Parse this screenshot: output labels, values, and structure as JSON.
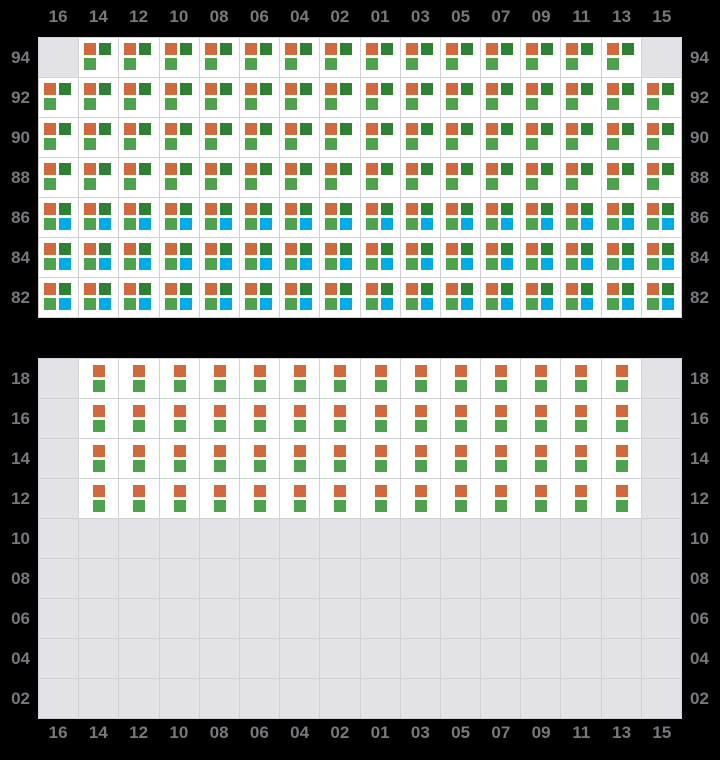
{
  "colors": {
    "background": "#000000",
    "cell_white": "#ffffff",
    "cell_empty": "#e3e3e7",
    "grid_line": "#d2d2d6",
    "label_gray": "#77777e",
    "orange": "#d2693c",
    "dark_green": "#2e8033",
    "light_green": "#4ea24e",
    "blue": "#00ace8"
  },
  "column_labels": [
    "16",
    "14",
    "12",
    "10",
    "08",
    "06",
    "04",
    "02",
    "01",
    "03",
    "05",
    "07",
    "09",
    "11",
    "13",
    "15"
  ],
  "cell_types": {
    "E": {
      "description": "empty-gray-cell",
      "squares": []
    },
    "T3": {
      "description": "three-seat-cell",
      "squares": [
        {
          "color": "orange",
          "slot": "tl"
        },
        {
          "color": "dark_green",
          "slot": "tr"
        },
        {
          "color": "light_green",
          "slot": "bl"
        }
      ]
    },
    "T4": {
      "description": "four-seat-cell",
      "squares": [
        {
          "color": "orange",
          "slot": "tl"
        },
        {
          "color": "dark_green",
          "slot": "tr"
        },
        {
          "color": "light_green",
          "slot": "bl"
        },
        {
          "color": "blue",
          "slot": "br"
        }
      ]
    },
    "V2": {
      "description": "two-seat-stacked-cell",
      "squares": [
        {
          "color": "orange",
          "slot": "ct"
        },
        {
          "color": "light_green",
          "slot": "cb"
        }
      ]
    }
  },
  "grids": [
    {
      "id": "upper",
      "rows": [
        {
          "label": "94",
          "cells": [
            "E",
            "T3",
            "T3",
            "T3",
            "T3",
            "T3",
            "T3",
            "T3",
            "T3",
            "T3",
            "T3",
            "T3",
            "T3",
            "T3",
            "T3",
            "E"
          ]
        },
        {
          "label": "92",
          "cells": [
            "T3",
            "T3",
            "T3",
            "T3",
            "T3",
            "T3",
            "T3",
            "T3",
            "T3",
            "T3",
            "T3",
            "T3",
            "T3",
            "T3",
            "T3",
            "T3"
          ]
        },
        {
          "label": "90",
          "cells": [
            "T3",
            "T3",
            "T3",
            "T3",
            "T3",
            "T3",
            "T3",
            "T3",
            "T3",
            "T3",
            "T3",
            "T3",
            "T3",
            "T3",
            "T3",
            "T3"
          ]
        },
        {
          "label": "88",
          "cells": [
            "T3",
            "T3",
            "T3",
            "T3",
            "T3",
            "T3",
            "T3",
            "T3",
            "T3",
            "T3",
            "T3",
            "T3",
            "T3",
            "T3",
            "T3",
            "T3"
          ]
        },
        {
          "label": "86",
          "cells": [
            "T4",
            "T4",
            "T4",
            "T4",
            "T4",
            "T4",
            "T4",
            "T4",
            "T4",
            "T4",
            "T4",
            "T4",
            "T4",
            "T4",
            "T4",
            "T4"
          ]
        },
        {
          "label": "84",
          "cells": [
            "T4",
            "T4",
            "T4",
            "T4",
            "T4",
            "T4",
            "T4",
            "T4",
            "T4",
            "T4",
            "T4",
            "T4",
            "T4",
            "T4",
            "T4",
            "T4"
          ]
        },
        {
          "label": "82",
          "cells": [
            "T4",
            "T4",
            "T4",
            "T4",
            "T4",
            "T4",
            "T4",
            "T4",
            "T4",
            "T4",
            "T4",
            "T4",
            "T4",
            "T4",
            "T4",
            "T4"
          ]
        }
      ]
    },
    {
      "id": "lower",
      "rows": [
        {
          "label": "18",
          "cells": [
            "E",
            "V2",
            "V2",
            "V2",
            "V2",
            "V2",
            "V2",
            "V2",
            "V2",
            "V2",
            "V2",
            "V2",
            "V2",
            "V2",
            "V2",
            "E"
          ]
        },
        {
          "label": "16",
          "cells": [
            "E",
            "V2",
            "V2",
            "V2",
            "V2",
            "V2",
            "V2",
            "V2",
            "V2",
            "V2",
            "V2",
            "V2",
            "V2",
            "V2",
            "V2",
            "E"
          ]
        },
        {
          "label": "14",
          "cells": [
            "E",
            "V2",
            "V2",
            "V2",
            "V2",
            "V2",
            "V2",
            "V2",
            "V2",
            "V2",
            "V2",
            "V2",
            "V2",
            "V2",
            "V2",
            "E"
          ]
        },
        {
          "label": "12",
          "cells": [
            "E",
            "V2",
            "V2",
            "V2",
            "V2",
            "V2",
            "V2",
            "V2",
            "V2",
            "V2",
            "V2",
            "V2",
            "V2",
            "V2",
            "V2",
            "E"
          ]
        },
        {
          "label": "10",
          "cells": [
            "E",
            "E",
            "E",
            "E",
            "E",
            "E",
            "E",
            "E",
            "E",
            "E",
            "E",
            "E",
            "E",
            "E",
            "E",
            "E"
          ]
        },
        {
          "label": "08",
          "cells": [
            "E",
            "E",
            "E",
            "E",
            "E",
            "E",
            "E",
            "E",
            "E",
            "E",
            "E",
            "E",
            "E",
            "E",
            "E",
            "E"
          ]
        },
        {
          "label": "06",
          "cells": [
            "E",
            "E",
            "E",
            "E",
            "E",
            "E",
            "E",
            "E",
            "E",
            "E",
            "E",
            "E",
            "E",
            "E",
            "E",
            "E"
          ]
        },
        {
          "label": "04",
          "cells": [
            "E",
            "E",
            "E",
            "E",
            "E",
            "E",
            "E",
            "E",
            "E",
            "E",
            "E",
            "E",
            "E",
            "E",
            "E",
            "E"
          ]
        },
        {
          "label": "02",
          "cells": [
            "E",
            "E",
            "E",
            "E",
            "E",
            "E",
            "E",
            "E",
            "E",
            "E",
            "E",
            "E",
            "E",
            "E",
            "E",
            "E"
          ]
        }
      ]
    }
  ]
}
